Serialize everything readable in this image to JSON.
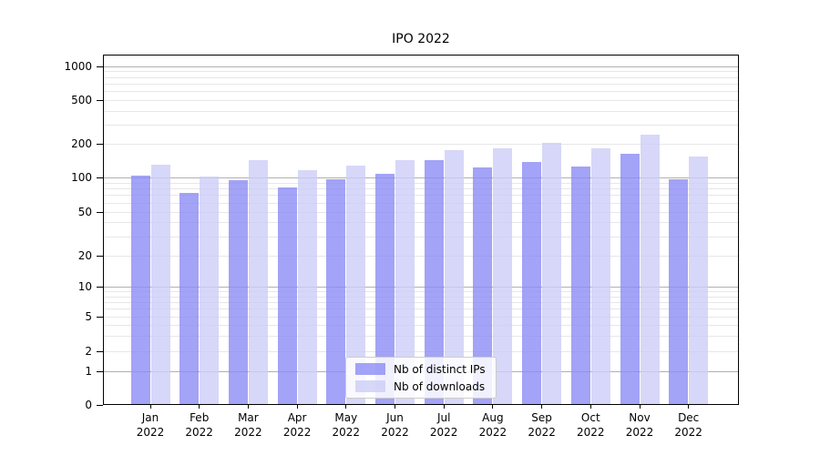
{
  "figure": {
    "background": "#ffffff"
  },
  "chart_data": {
    "type": "bar",
    "title": "IPO 2022",
    "xlabel": "",
    "ylabel": "",
    "yscale": "symlog",
    "grid": true,
    "legend_position": "inside-bottom-center",
    "yticks": [
      0,
      1,
      2,
      5,
      10,
      20,
      50,
      100,
      200,
      500,
      1000
    ],
    "categories": [
      "Jan 2022",
      "Feb 2022",
      "Mar 2022",
      "Apr 2022",
      "May 2022",
      "Jun 2022",
      "Jul 2022",
      "Aug 2022",
      "Sep 2022",
      "Oct 2022",
      "Nov 2022",
      "Dec 2022"
    ],
    "series": [
      {
        "name": "Nb of distinct IPs",
        "color": "#8c8cf5",
        "values": [
          103,
          73,
          95,
          82,
          97,
          108,
          142,
          122,
          139,
          126,
          163,
          97
        ]
      },
      {
        "name": "Nb of downloads",
        "color": "#cdcdf8",
        "values": [
          130,
          101,
          144,
          117,
          129,
          142,
          177,
          183,
          206,
          183,
          242,
          153
        ]
      }
    ]
  },
  "colors": {
    "major_grid": "#b0b0b0",
    "minor_grid": "#e7e7e7",
    "spine": "#000000",
    "legend_border": "#cccccc"
  }
}
